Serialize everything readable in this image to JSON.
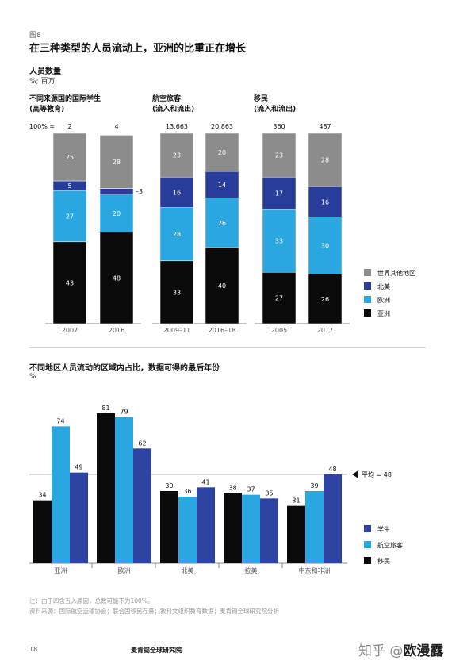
{
  "figure_label": "图8",
  "title": "在三种类型的人员流动上，亚洲的比重正在增长",
  "subhead": "人员数量",
  "unit_label": "%; 百万",
  "hundred_label": "100% =",
  "colors": {
    "asia": "#0a0a0a",
    "europe": "#2aa6e0",
    "north_america": "#283c9a",
    "rest": "#8c8c8c",
    "students": "#2d44a3",
    "airline": "#2aa6e0",
    "migrants": "#0a0a0a"
  },
  "chart_data": [
    {
      "type": "bar",
      "stacked": true,
      "panels": [
        {
          "title_line1": "不同来源国的国际学生",
          "title_line2": "(高等教育)",
          "categories": [
            "2007",
            "2016"
          ],
          "totals": [
            "2",
            "4"
          ],
          "segments": {
            "asia": [
              43,
              48
            ],
            "europe": [
              27,
              20
            ],
            "north_america": [
              5,
              3
            ],
            "rest": [
              25,
              28
            ]
          }
        },
        {
          "title_line1": "航空旅客",
          "title_line2": "(流入和流出)",
          "categories": [
            "2009–11",
            "2016–18"
          ],
          "totals": [
            "13,663",
            "20,863"
          ],
          "segments": {
            "asia": [
              33,
              40
            ],
            "europe": [
              28,
              26
            ],
            "north_america": [
              16,
              14
            ],
            "rest": [
              23,
              20
            ]
          }
        },
        {
          "title_line1": "移民",
          "title_line2": "(流入和流出)",
          "categories": [
            "2005",
            "2017"
          ],
          "totals": [
            "360",
            "487"
          ],
          "segments": {
            "asia": [
              27,
              26
            ],
            "europe": [
              33,
              30
            ],
            "north_america": [
              17,
              16
            ],
            "rest": [
              23,
              28
            ]
          }
        }
      ],
      "legend": [
        {
          "key": "rest",
          "label": "世界其他地区"
        },
        {
          "key": "north_america",
          "label": "北美"
        },
        {
          "key": "europe",
          "label": "欧洲"
        },
        {
          "key": "asia",
          "label": "亚洲"
        }
      ],
      "legend_position": "right"
    },
    {
      "type": "bar",
      "title": "不同地区人员流动的区域内占比，数据可得的最后年份",
      "ylabel": "%",
      "categories": [
        "亚洲",
        "欧洲",
        "北美",
        "拉美",
        "中东和非洲"
      ],
      "series": [
        {
          "key": "migrants",
          "name": "移民",
          "values": [
            34,
            81,
            39,
            38,
            31
          ]
        },
        {
          "key": "airline",
          "name": "航空旅客",
          "values": [
            74,
            79,
            36,
            37,
            39
          ]
        },
        {
          "key": "students",
          "name": "学生",
          "values": [
            49,
            62,
            41,
            35,
            48
          ]
        }
      ],
      "average": {
        "value": 48,
        "label": "平均 = 48"
      },
      "legend": [
        {
          "key": "students",
          "label": "学生"
        },
        {
          "key": "airline",
          "label": "航空旅客"
        },
        {
          "key": "migrants",
          "label": "移民"
        }
      ],
      "ylim": [
        0,
        90
      ],
      "legend_position": "right"
    }
  ],
  "footnote_1": "注：由于四舍五入原因，总数可能不为100%。",
  "footnote_2": "资料来源：国际航空运输协会；联合国移民存量；教科文组织教育数据；麦肯锡全球研究院分析",
  "page_number": "18",
  "brand": "麦肯锡全球研究院",
  "watermark_plain": "知乎 @",
  "watermark_strong": "欧漫露"
}
